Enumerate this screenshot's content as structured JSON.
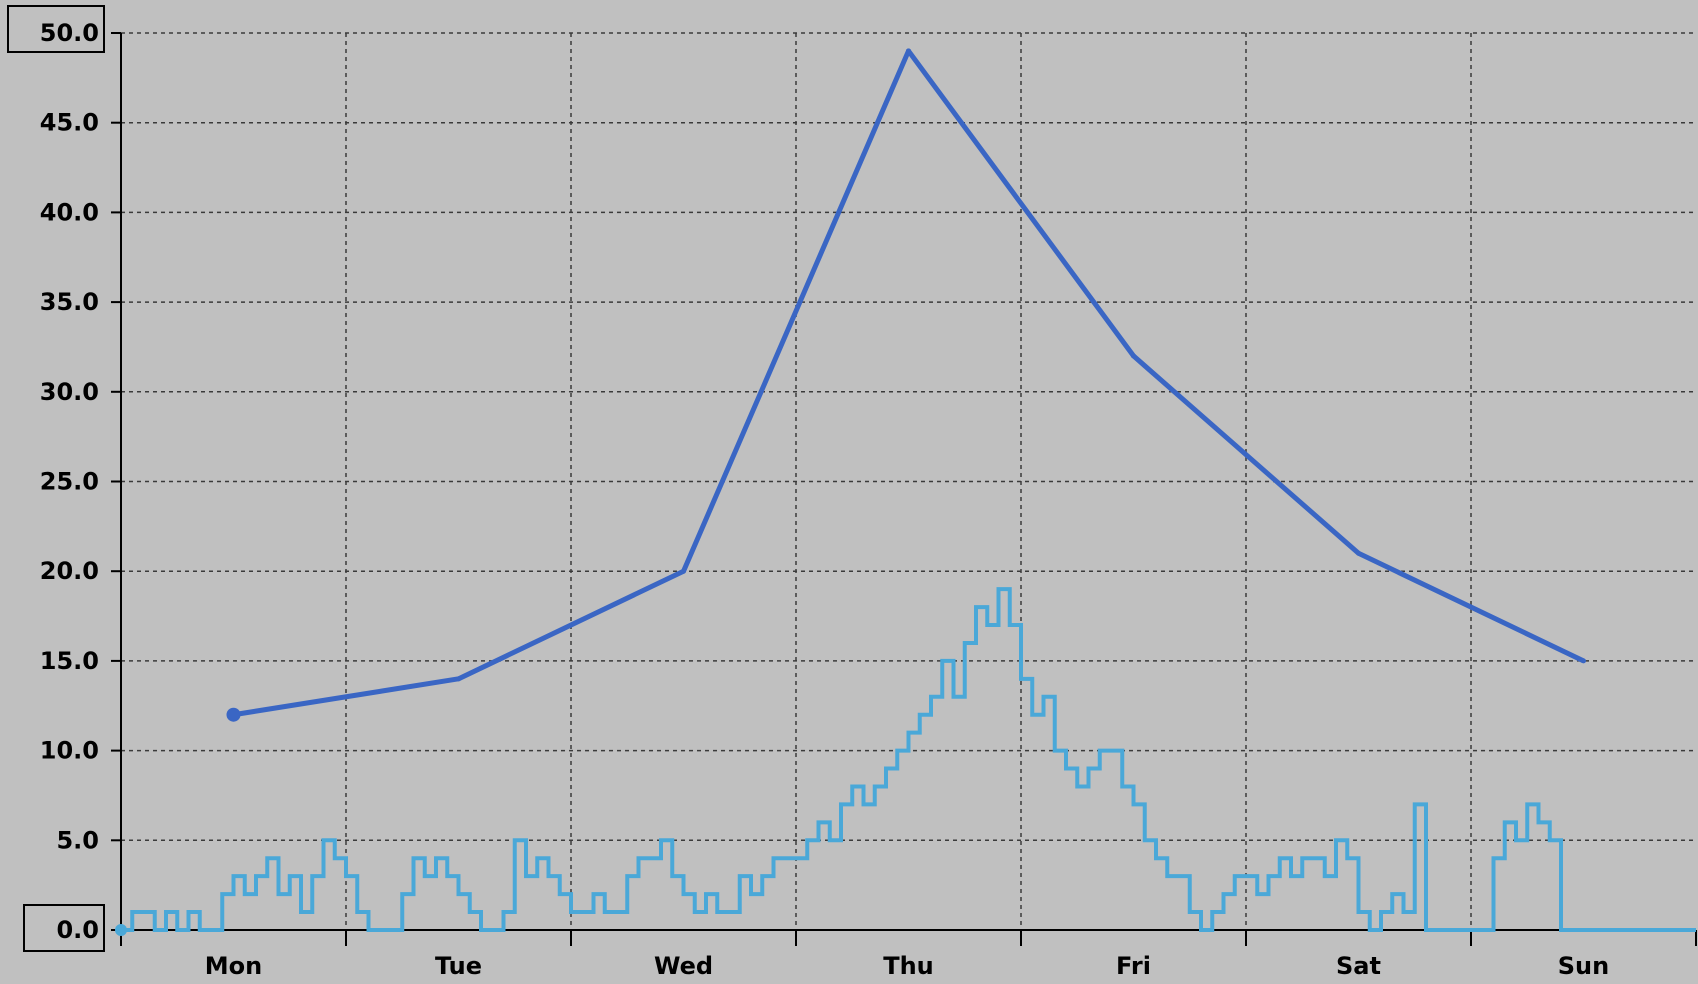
{
  "chart_data": {
    "type": "line",
    "title": "",
    "xlabel": "",
    "ylabel": "",
    "ylim": [
      0,
      50
    ],
    "xlim": [
      0,
      7
    ],
    "yticks": [
      "0.0",
      "5.0",
      "10.0",
      "15.0",
      "20.0",
      "25.0",
      "30.0",
      "35.0",
      "40.0",
      "45.0",
      "50.0"
    ],
    "categories": [
      "Mon",
      "Tue",
      "Wed",
      "Thu",
      "Fri",
      "Sat",
      "Sun"
    ],
    "grid": true,
    "colors": {
      "background": "#c0c0c0",
      "series_daily": "#3a66c4",
      "series_detail": "#4aa8d8",
      "grid": "#3a3a3a"
    },
    "series": [
      {
        "key": "daily",
        "x": [
          0.5,
          1.5,
          2.5,
          3.5,
          4.5,
          5.5,
          6.5
        ],
        "values": [
          12,
          14,
          20,
          49,
          32,
          21,
          15
        ]
      },
      {
        "key": "detail",
        "x": [
          0.0,
          0.05,
          0.1,
          0.15,
          0.2,
          0.25,
          0.3,
          0.35,
          0.4,
          0.45,
          0.5,
          0.55,
          0.6,
          0.65,
          0.7,
          0.75,
          0.8,
          0.85,
          0.9,
          0.95,
          1.0,
          1.05,
          1.1,
          1.15,
          1.2,
          1.25,
          1.3,
          1.35,
          1.4,
          1.45,
          1.5,
          1.55,
          1.6,
          1.65,
          1.7,
          1.75,
          1.8,
          1.85,
          1.9,
          1.95,
          2.0,
          2.05,
          2.1,
          2.15,
          2.2,
          2.25,
          2.3,
          2.35,
          2.4,
          2.45,
          2.5,
          2.55,
          2.6,
          2.65,
          2.7,
          2.75,
          2.8,
          2.85,
          2.9,
          2.95,
          3.0,
          3.05,
          3.1,
          3.15,
          3.2,
          3.25,
          3.3,
          3.35,
          3.4,
          3.45,
          3.5,
          3.55,
          3.6,
          3.65,
          3.7,
          3.75,
          3.8,
          3.85,
          3.9,
          3.95,
          4.0,
          4.05,
          4.1,
          4.15,
          4.2,
          4.25,
          4.3,
          4.35,
          4.4,
          4.45,
          4.5,
          4.55,
          4.6,
          4.65,
          4.7,
          4.75,
          4.8,
          4.85,
          4.9,
          4.95,
          5.0,
          5.05,
          5.1,
          5.15,
          5.2,
          5.25,
          5.3,
          5.35,
          5.4,
          5.45,
          5.5,
          5.55,
          5.6,
          5.65,
          5.7,
          5.75,
          5.8,
          5.85,
          5.9,
          5.95,
          6.0,
          6.05,
          6.1,
          6.15,
          6.2,
          6.25,
          6.3,
          6.35,
          6.4,
          6.45,
          6.5,
          6.55,
          6.6,
          6.65,
          6.7,
          6.75,
          6.8,
          6.85,
          6.9,
          6.95,
          7.0
        ],
        "values": [
          0,
          1,
          1,
          0,
          1,
          0,
          1,
          0,
          0,
          2,
          3,
          2,
          3,
          4,
          2,
          3,
          1,
          3,
          5,
          4,
          3,
          1,
          0,
          0,
          0,
          2,
          4,
          3,
          4,
          3,
          2,
          1,
          0,
          0,
          1,
          5,
          3,
          4,
          3,
          2,
          1,
          1,
          2,
          1,
          1,
          3,
          4,
          4,
          5,
          3,
          2,
          1,
          2,
          1,
          1,
          3,
          2,
          3,
          4,
          4,
          4,
          5,
          6,
          5,
          7,
          8,
          7,
          8,
          9,
          10,
          11,
          12,
          13,
          15,
          13,
          16,
          18,
          17,
          19,
          17,
          14,
          12,
          13,
          10,
          9,
          8,
          9,
          10,
          10,
          8,
          7,
          5,
          4,
          3,
          3,
          1,
          0,
          1,
          2,
          3,
          3,
          2,
          3,
          4,
          3,
          4,
          4,
          3,
          5,
          4,
          1,
          0,
          1,
          2,
          1,
          7,
          0,
          0,
          0,
          0,
          0,
          0,
          4,
          6,
          5,
          7,
          6,
          5,
          0,
          0,
          0,
          0,
          0,
          0,
          0,
          0,
          0,
          0,
          0,
          0,
          0
        ]
      }
    ]
  }
}
